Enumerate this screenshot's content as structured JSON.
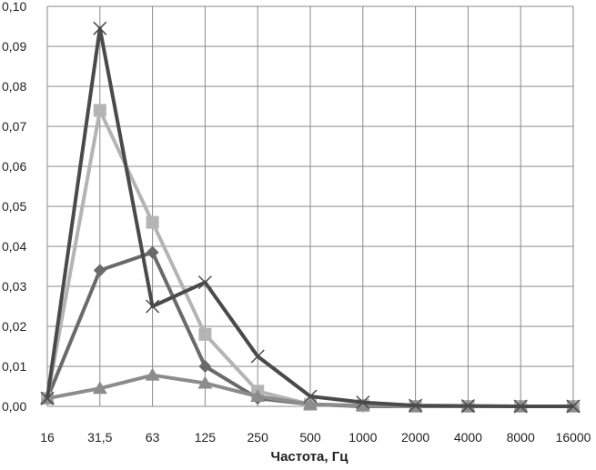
{
  "chart_data": {
    "type": "line",
    "title": "",
    "xlabel": "Частота, Гц",
    "ylabel": "",
    "categories": [
      "16",
      "31,5",
      "63",
      "125",
      "250",
      "500",
      "1000",
      "2000",
      "4000",
      "8000",
      "16000"
    ],
    "ylim": [
      0,
      0.1
    ],
    "yticks": [
      "0,00",
      "0,01",
      "0,02",
      "0,03",
      "0,04",
      "0,05",
      "0,06",
      "0,07",
      "0,08",
      "0,09",
      "0,10"
    ],
    "grid": true,
    "legend": "none",
    "series": [
      {
        "marker": "diamond",
        "color": "#6a6a6a",
        "values": [
          0.002,
          0.034,
          0.0385,
          0.01,
          0.002,
          0.0005,
          0,
          0,
          0,
          0,
          0
        ]
      },
      {
        "marker": "square",
        "color": "#b4b4b4",
        "values": [
          0.002,
          0.074,
          0.046,
          0.018,
          0.0038,
          0.0005,
          0.0002,
          0,
          0,
          0,
          0
        ]
      },
      {
        "marker": "triangle",
        "color": "#8c8c8c",
        "values": [
          0.002,
          0.0045,
          0.0078,
          0.0058,
          0.0025,
          0.0005,
          0.0002,
          0,
          0,
          0,
          0
        ]
      },
      {
        "marker": "x",
        "color": "#4a4a4a",
        "values": [
          0.002,
          0.0945,
          0.025,
          0.031,
          0.0125,
          0.0025,
          0.001,
          0.0002,
          0.0001,
          0,
          0
        ]
      }
    ]
  }
}
